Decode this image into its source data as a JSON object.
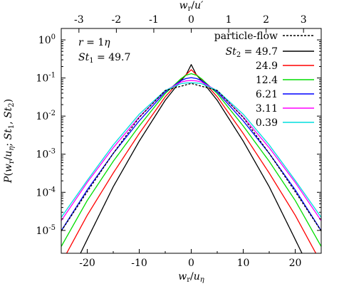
{
  "chart_data": {
    "type": "line",
    "xlabel": "w_r/u_η",
    "ylabel": "P(w_r/u_η; St_1, St_2)",
    "top_xlabel": "w_r/u′",
    "xlim": [
      -25,
      25
    ],
    "ylim_log10": [
      -5.6,
      0.3
    ],
    "y_scale": "log",
    "xticks": [
      -20,
      -10,
      0,
      10,
      20
    ],
    "xtick_labels": [
      "-20",
      "-10",
      "0",
      "10",
      "20"
    ],
    "yticks_log10": [
      0,
      -1,
      -2,
      -3,
      -4,
      -5
    ],
    "ytick_labels": [
      {
        "base": "10",
        "exp": "0"
      },
      {
        "base": "10",
        "exp": "-1"
      },
      {
        "base": "10",
        "exp": "-2"
      },
      {
        "base": "10",
        "exp": "-3"
      },
      {
        "base": "10",
        "exp": "-4"
      },
      {
        "base": "10",
        "exp": "-5"
      }
    ],
    "top_xticks": [
      -3,
      -2,
      -1,
      0,
      1,
      2,
      3
    ],
    "top_xtick_labels": [
      "-3",
      "-2",
      "-1",
      "0",
      "1",
      "2",
      "3"
    ],
    "top_scale_factor": 7.2,
    "annotations": [
      "r = 1η",
      "St_1 = 49.7"
    ],
    "legend_position": "top-right",
    "series": [
      {
        "name": "particle-flow",
        "color": "#000000",
        "dash": true,
        "points": [
          [
            0,
            0.072
          ],
          [
            5,
            0.047
          ],
          [
            10,
            0.0092
          ],
          [
            15,
            0.00105
          ],
          [
            20,
            0.000104
          ],
          [
            24,
            1.55e-05
          ]
        ]
      },
      {
        "name": "St_2 = 49.7",
        "color": "#000000",
        "points": [
          [
            0,
            0.225
          ],
          [
            1,
            0.12
          ],
          [
            2,
            0.085
          ],
          [
            5,
            0.026
          ],
          [
            10,
            0.0022
          ],
          [
            15,
            0.00014
          ],
          [
            20,
            5.8e-06
          ],
          [
            22,
            1.6e-06
          ]
        ]
      },
      {
        "name": "24.9",
        "color": "#ff0000",
        "points": [
          [
            0,
            0.165
          ],
          [
            1,
            0.122
          ],
          [
            2,
            0.092
          ],
          [
            5,
            0.032
          ],
          [
            10,
            0.0035
          ],
          [
            15,
            0.00032
          ],
          [
            20,
            2.5e-05
          ],
          [
            23,
            4.4e-06
          ]
        ]
      },
      {
        "name": "12.4",
        "color": "#00dd00",
        "points": [
          [
            0,
            0.13
          ],
          [
            1,
            0.118
          ],
          [
            2,
            0.095
          ],
          [
            5,
            0.039
          ],
          [
            10,
            0.0055
          ],
          [
            15,
            0.00065
          ],
          [
            20,
            6.1e-05
          ],
          [
            24,
            6.6e-06
          ]
        ]
      },
      {
        "name": "6.21",
        "color": "#0000ff",
        "points": [
          [
            0,
            0.102
          ],
          [
            1,
            0.097
          ],
          [
            2,
            0.085
          ],
          [
            5,
            0.043
          ],
          [
            10,
            0.0075
          ],
          [
            15,
            0.00105
          ],
          [
            20,
            0.000116
          ],
          [
            25,
            9.8e-06
          ]
        ]
      },
      {
        "name": "3.11",
        "color": "#ff00ff",
        "points": [
          [
            0,
            0.086
          ],
          [
            1,
            0.084
          ],
          [
            2,
            0.078
          ],
          [
            5,
            0.046
          ],
          [
            10,
            0.0095
          ],
          [
            15,
            0.00148
          ],
          [
            20,
            0.000182
          ],
          [
            25,
            1.8e-05
          ]
        ]
      },
      {
        "name": "0.39",
        "color": "#00dddd",
        "points": [
          [
            0,
            0.075
          ],
          [
            1,
            0.074
          ],
          [
            2,
            0.071
          ],
          [
            5,
            0.047
          ],
          [
            10,
            0.0112
          ],
          [
            15,
            0.00175
          ],
          [
            20,
            0.000205
          ],
          [
            25,
            2.2e-05
          ]
        ]
      }
    ]
  }
}
